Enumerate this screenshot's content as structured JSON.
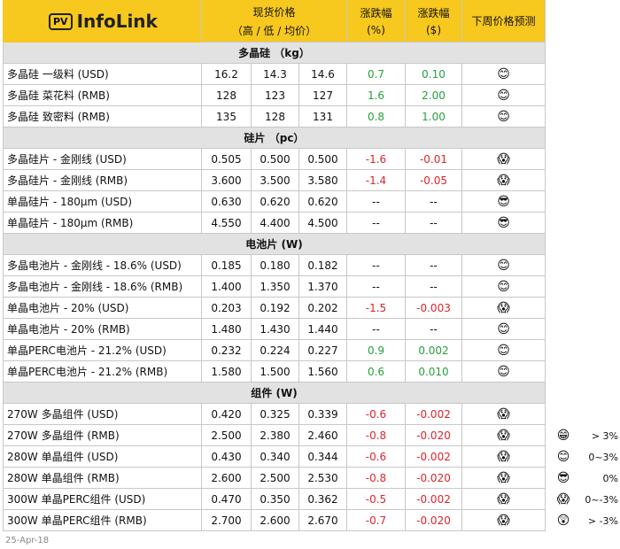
{
  "header": {
    "logo_box": "PV",
    "logo": "InfoLink",
    "columns": [
      [
        "现货价格",
        "（高 / 低 / 均价）"
      ],
      [
        "涨跌幅",
        "(%)"
      ],
      [
        "涨跌幅",
        "($)"
      ],
      [
        "下周价格预测"
      ]
    ]
  },
  "sections": [
    {
      "title": "多晶硅 （kg）",
      "rows": [
        [
          "多晶硅 一级料 (USD)",
          "16.2",
          "14.3",
          "14.6",
          "0.7",
          "0.10",
          "😊"
        ],
        [
          "多晶硅 菜花料 (RMB)",
          "128",
          "123",
          "127",
          "1.6",
          "2.00",
          "😊"
        ],
        [
          "多晶硅 致密料 (RMB)",
          "135",
          "128",
          "131",
          "0.8",
          "1.00",
          "😊"
        ]
      ]
    },
    {
      "title": "硅片 （pc）",
      "rows": [
        [
          "多晶硅片 - 金刚线 (USD)",
          "0.505",
          "0.500",
          "0.500",
          "-1.6",
          "-0.01",
          "😱"
        ],
        [
          "多晶硅片 - 金刚线 (RMB)",
          "3.600",
          "3.500",
          "3.580",
          "-1.4",
          "-0.05",
          "😱"
        ],
        [
          "单晶硅片 - 180µm (USD)",
          "0.630",
          "0.620",
          "0.620",
          "--",
          "--",
          "😎"
        ],
        [
          "单晶硅片 - 180µm (RMB)",
          "4.550",
          "4.400",
          "4.500",
          "--",
          "--",
          "😎"
        ]
      ]
    },
    {
      "title": "电池片 (W)",
      "rows": [
        [
          "多晶电池片 - 金刚线 - 18.6% (USD)",
          "0.185",
          "0.180",
          "0.182",
          "--",
          "--",
          "😊"
        ],
        [
          "多晶电池片 - 金刚线 - 18.6% (RMB)",
          "1.400",
          "1.350",
          "1.370",
          "--",
          "--",
          "😊"
        ],
        [
          "单晶电池片 - 20% (USD)",
          "0.203",
          "0.192",
          "0.202",
          "-1.5",
          "-0.003",
          "😱"
        ],
        [
          "单晶电池片 - 20% (RMB)",
          "1.480",
          "1.430",
          "1.440",
          "--",
          "--",
          "😊"
        ],
        [
          "单晶PERC电池片 - 21.2% (USD)",
          "0.232",
          "0.224",
          "0.227",
          "0.9",
          "0.002",
          "😊"
        ],
        [
          "单晶PERC电池片 - 21.2% (RMB)",
          "1.580",
          "1.500",
          "1.560",
          "0.6",
          "0.010",
          "😊"
        ]
      ]
    },
    {
      "title": "组件 (W)",
      "rows": [
        [
          "270W 多晶组件 (USD)",
          "0.420",
          "0.325",
          "0.339",
          "-0.6",
          "-0.002",
          "😱"
        ],
        [
          "270W 多晶组件 (RMB)",
          "2.500",
          "2.380",
          "2.460",
          "-0.8",
          "-0.020",
          "😱"
        ],
        [
          "280W 单晶组件 (USD)",
          "0.430",
          "0.340",
          "0.344",
          "-0.6",
          "-0.002",
          "😱"
        ],
        [
          "280W 单晶组件 (RMB)",
          "2.600",
          "2.500",
          "2.530",
          "-0.8",
          "-0.020",
          "😱"
        ],
        [
          "300W 单晶PERC组件 (USD)",
          "0.470",
          "0.350",
          "0.362",
          "-0.5",
          "-0.002",
          "😱"
        ],
        [
          "300W 单晶PERC组件 (RMB)",
          "2.700",
          "2.600",
          "2.670",
          "-0.7",
          "-0.020",
          "😱"
        ]
      ]
    }
  ],
  "legend": [
    [
      "😁",
      "> 3%"
    ],
    [
      "😊",
      "0~3%"
    ],
    [
      "😎",
      "0%"
    ],
    [
      "😱",
      "0~-3%"
    ],
    [
      "😲",
      "> -3%"
    ]
  ],
  "footer": "25-Apr-18"
}
